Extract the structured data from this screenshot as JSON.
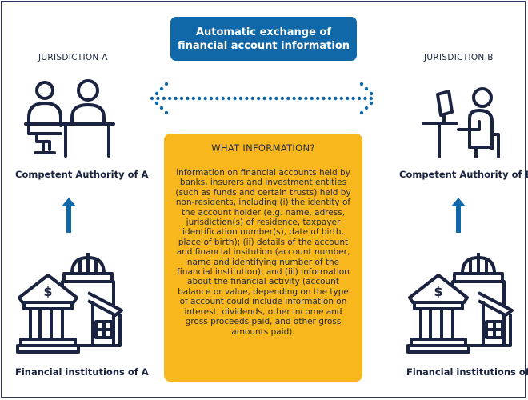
{
  "title": "Automatic exchange of financial account information",
  "jurisdiction_a": {
    "heading": "JURISDICTION A",
    "authority": "Competent Authority of A",
    "institutions": "Financial institutions of A"
  },
  "jurisdiction_b": {
    "heading": "JURISDICTION B",
    "authority": "Competent Authority of B",
    "institutions": "Financial institutions of B"
  },
  "info": {
    "heading": "WHAT INFORMATION?",
    "body": "Information on financial accounts held by banks, insurers and investment entities (such as funds and certain trusts) held by non-residents, including (i) the identity of the account holder (e.g. name, adress, jurisdiction(s) of residence, taxpayer identification number(s), date of birth, place of birth); (ii) details of the account and financial insitution (account number, name and identifying number of the financial institution); and (iii) information about the financial activity (account balance or value, depending on the type of account could include information on interest, dividends, other income and gross proceeds paid, and other gross amounts paid)."
  },
  "colors": {
    "navy": "#1a2340",
    "blue": "#1168a8",
    "amber": "#f8b71c",
    "dots": "#1168a8"
  },
  "icons": {
    "authority_a": "two-people-at-desk-icon",
    "authority_b": "person-at-computer-icon",
    "institution": "bank-building-icon",
    "upward_arrow": "arrow-up-icon",
    "exchange": "two-way-dotted-arrow-icon"
  }
}
